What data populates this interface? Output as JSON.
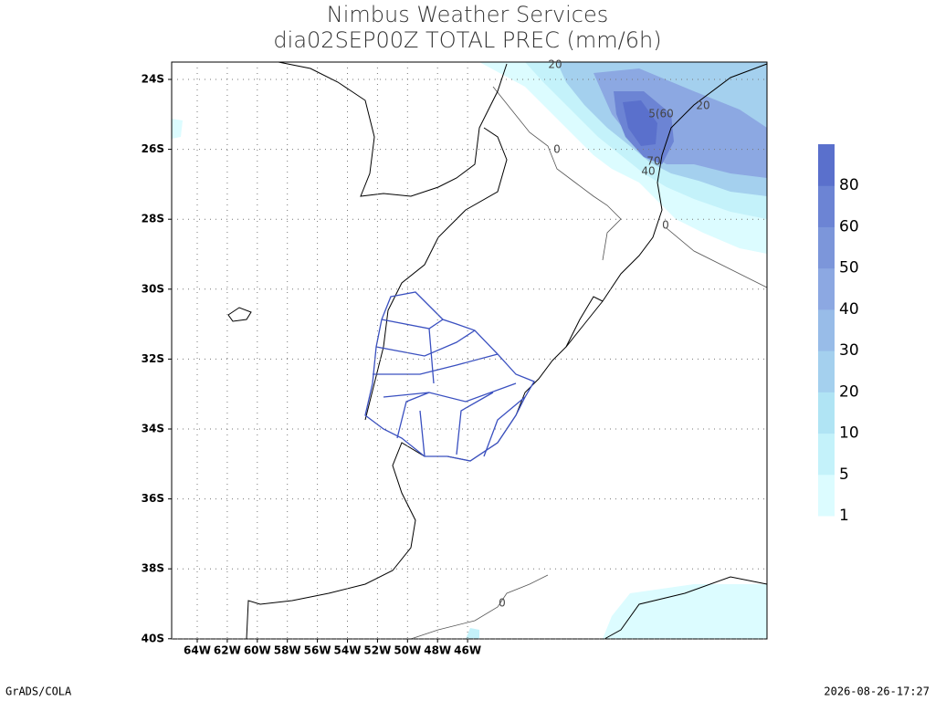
{
  "header": {
    "title": "Nimbus Weather Services",
    "subtitle": "dia02SEP00Z TOTAL PREC (mm/6h)"
  },
  "map": {
    "lon_labels": [
      "64W",
      "62W",
      "60W",
      "58W",
      "56W",
      "54W",
      "52W",
      "50W",
      "48W",
      "46W"
    ],
    "lat_labels": [
      "24S",
      "26S",
      "28S",
      "30S",
      "32S",
      "34S",
      "36S",
      "38S",
      "40S"
    ],
    "contour_labels": [
      "20",
      "20",
      "0",
      "5(60",
      "70",
      "40",
      "0",
      "0"
    ]
  },
  "colorbar": {
    "labels": [
      "1",
      "5",
      "10",
      "20",
      "30",
      "40",
      "50",
      "60",
      "80"
    ],
    "colors": [
      "#dcfcff",
      "#c4f2fa",
      "#b0e4f4",
      "#a4d0ee",
      "#98bce8",
      "#8ca8e2",
      "#7c96da",
      "#6c84d4",
      "#5a70cc"
    ]
  },
  "footer": {
    "left": "GrADS/COLA",
    "right": "2026-08-26-17:27"
  }
}
